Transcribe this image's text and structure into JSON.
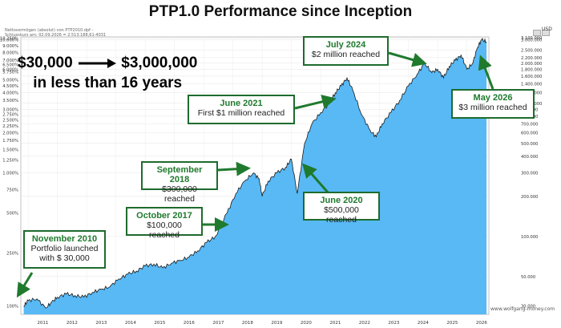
{
  "title": "PTP1.0 Performance since Inception",
  "header": {
    "line1": "Nettovermögen (absolut) von PTP2010.dpf -",
    "line2": "Schlusskurs am: 02.09.2026 = 2.513.188,61-4031"
  },
  "headline": {
    "line1_from": "$30,000",
    "line1_to": "$3,000,000",
    "line2": "in less than 16 years"
  },
  "callouts": [
    {
      "date": "November 2010",
      "desc1": "Portfolio launched",
      "desc2": "with $ 30,000"
    },
    {
      "date": "October 2017",
      "desc1": "$100,000 reached",
      "desc2": ""
    },
    {
      "date": "September 2018",
      "desc1": "$300,000 reached",
      "desc2": ""
    },
    {
      "date": "June 2020",
      "desc1": "$500,000 reached",
      "desc2": ""
    },
    {
      "date": "June 2021",
      "desc1": "First $1 million reached",
      "desc2": ""
    },
    {
      "date": "July 2024",
      "desc1": "$2 million reached",
      "desc2": ""
    },
    {
      "date": "May 2026",
      "desc1": "$3 million reached",
      "desc2": ""
    }
  ],
  "watermark": "www.wolfgang-money.com",
  "colors": {
    "fill": "#58b9f5",
    "line": "#1b1b1b",
    "callout_border": "#1f6b2e",
    "callout_title": "#1f7a2e",
    "arrow": "#1f7a2e"
  },
  "chart_data": {
    "type": "area",
    "title": "PTP1.0 Performance since Inception",
    "x_tick_labels": [
      "2011",
      "2012",
      "2013",
      "2014",
      "2015",
      "2016",
      "2017",
      "2018",
      "2019",
      "2020",
      "2021",
      "2022",
      "2023",
      "2024",
      "2025",
      "2026"
    ],
    "left_axis": {
      "scale": "log",
      "tick_labels": [
        "10.250%",
        "10.000%",
        "9.000%",
        "8.000%",
        "7.000%",
        "6.500%",
        "6.000%",
        "5.750%",
        "5.000%",
        "4.500%",
        "4.000%",
        "3.500%",
        "3.000%",
        "2.750%",
        "2.500%",
        "2.250%",
        "2.000%",
        "1.750%",
        "1.500%",
        "1.250%",
        "1.000%",
        "750%",
        "500%",
        "250%",
        "100%"
      ],
      "tick_values": [
        10250,
        10000,
        9000,
        8000,
        7000,
        6500,
        6000,
        5750,
        5000,
        4500,
        4000,
        3500,
        3000,
        2750,
        2500,
        2250,
        2000,
        1750,
        1500,
        1250,
        1000,
        750,
        500,
        250,
        100
      ]
    },
    "right_axis": {
      "label": "USD",
      "scale": "log",
      "tick_labels": [
        "3.100.000",
        "3.000.000",
        "2.500.000",
        "2.200.000",
        "2.000.000",
        "1.800.000",
        "1.600.000",
        "1.400.000",
        "1.200.000",
        "1.000.000",
        "900.000",
        "800.000",
        "700.000",
        "600.000",
        "500.000",
        "400.000",
        "300.000",
        "200.000",
        "100.000",
        "50.000",
        "30.000"
      ],
      "tick_values": [
        3100000,
        3000000,
        2500000,
        2200000,
        2000000,
        1800000,
        1600000,
        1400000,
        1200000,
        1000000,
        900000,
        800000,
        700000,
        600000,
        500000,
        400000,
        300000,
        200000,
        100000,
        50000,
        30000
      ]
    },
    "series": [
      {
        "values_x_year": [
          2010.85,
          2011.0,
          2011.3,
          2011.6,
          2011.8,
          2012.0,
          2012.3,
          2012.6,
          2012.9,
          2013.2,
          2013.5,
          2013.8,
          2014.1,
          2014.4,
          2014.7,
          2015.0,
          2015.3,
          2015.6,
          2015.9,
          2016.2,
          2016.5,
          2016.8,
          2017.1,
          2017.4,
          2017.8,
          2018.1,
          2018.4,
          2018.7,
          2018.9,
          2019.0,
          2019.2,
          2019.5,
          2019.8,
          2020.0,
          2020.2,
          2020.45,
          2020.7,
          2021.0,
          2021.3,
          2021.5,
          2021.7,
          2021.9,
          2022.1,
          2022.4,
          2022.7,
          2022.9,
          2023.1,
          2023.4,
          2023.7,
          2024.0,
          2024.3,
          2024.55,
          2024.8,
          2025.0,
          2025.2,
          2025.4,
          2025.6,
          2025.8,
          2026.0,
          2026.2,
          2026.35,
          2026.5,
          2026.67
        ],
        "values_usd": [
          30000,
          33000,
          34000,
          29000,
          32000,
          35000,
          37000,
          36000,
          35000,
          38000,
          40000,
          42000,
          48000,
          52000,
          55000,
          60000,
          62000,
          58000,
          63000,
          66000,
          70000,
          78000,
          90000,
          100000,
          150000,
          210000,
          260000,
          300000,
          270000,
          200000,
          260000,
          300000,
          330000,
          380000,
          210000,
          500000,
          700000,
          850000,
          1000000,
          1200000,
          1350000,
          1550000,
          1250000,
          820000,
          620000,
          560000,
          700000,
          850000,
          1050000,
          1350000,
          1650000,
          2000000,
          1700000,
          1800000,
          1550000,
          1900000,
          2100000,
          2300000,
          1800000,
          2000000,
          2600000,
          3000000,
          2900000
        ]
      }
    ]
  }
}
